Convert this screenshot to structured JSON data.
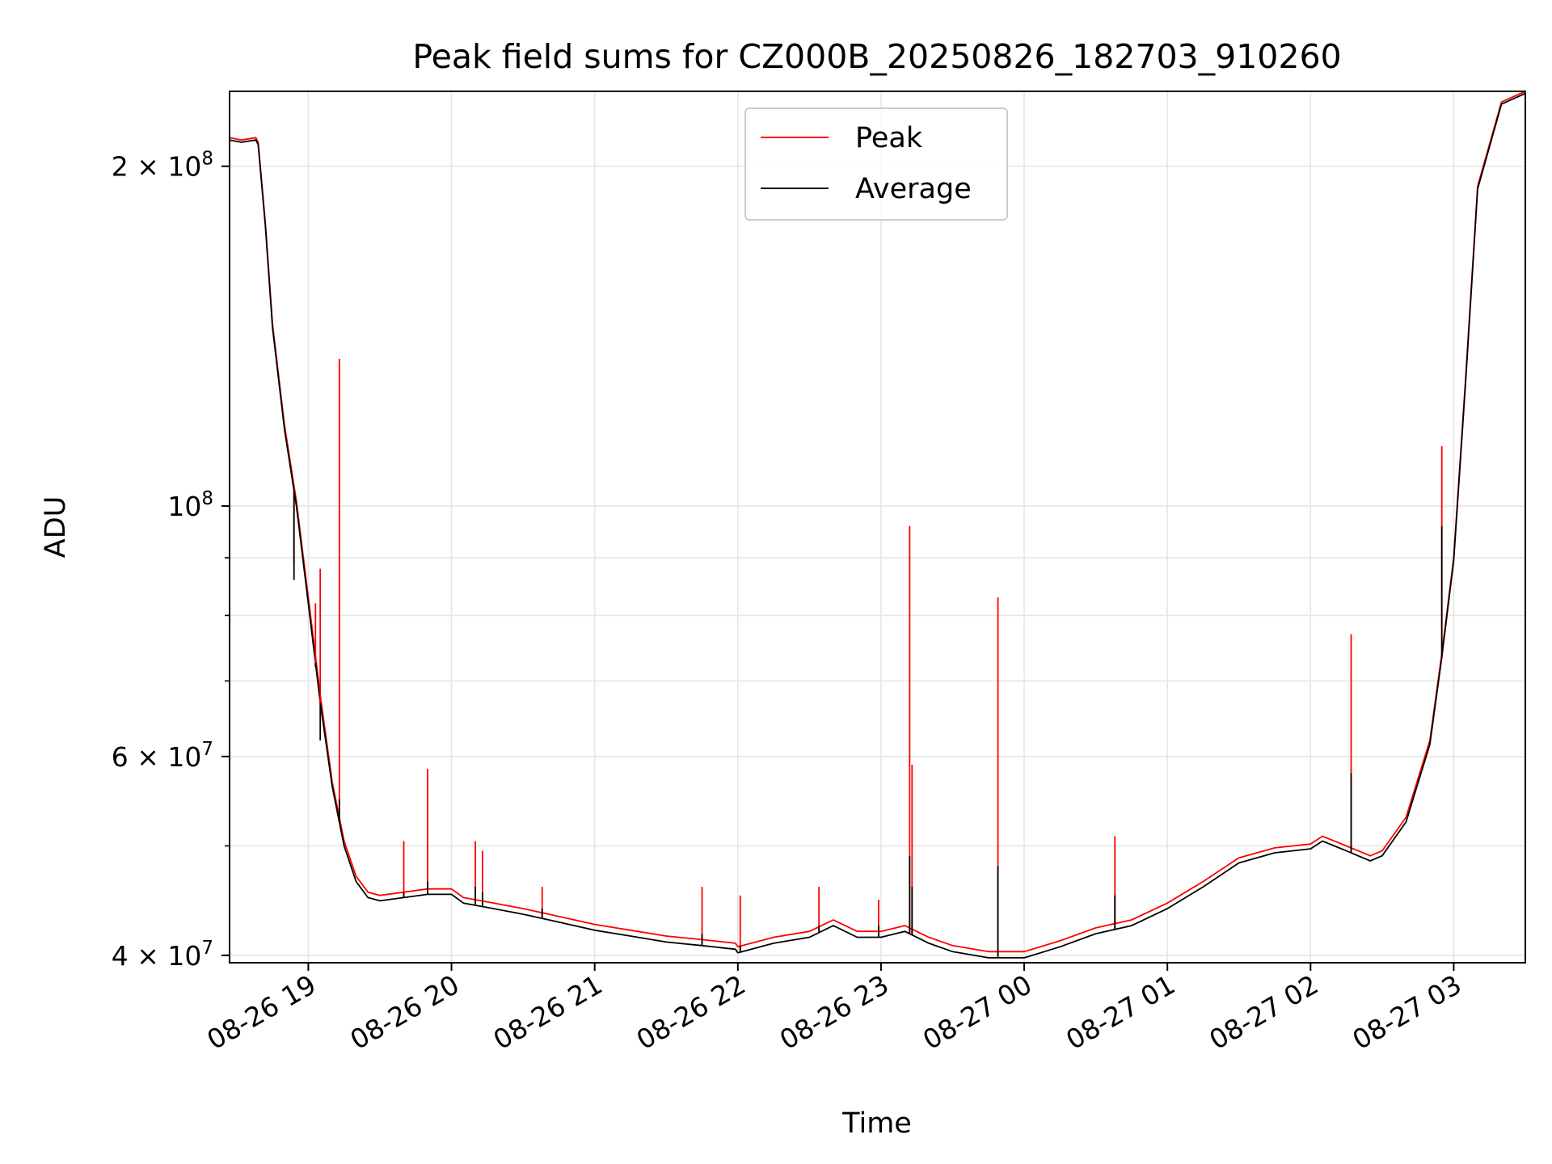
{
  "chart_data": {
    "type": "line",
    "title": "Peak field sums for CZ000B_20250826_182703_910260",
    "xlabel": "Time",
    "ylabel": "ADU",
    "y_scale": "log",
    "grid": true,
    "legend_position": "top-center",
    "xlim": [
      "2025-08-26 18:27",
      "2025-08-27 03:30"
    ],
    "ylim": [
      39400000,
      233000000
    ],
    "x_ticks": [
      {
        "t": "2025-08-26 19:00",
        "label": "08-26 19"
      },
      {
        "t": "2025-08-26 20:00",
        "label": "08-26 20"
      },
      {
        "t": "2025-08-26 21:00",
        "label": "08-26 21"
      },
      {
        "t": "2025-08-26 22:00",
        "label": "08-26 22"
      },
      {
        "t": "2025-08-26 23:00",
        "label": "08-26 23"
      },
      {
        "t": "2025-08-27 00:00",
        "label": "08-27 00"
      },
      {
        "t": "2025-08-27 01:00",
        "label": "08-27 01"
      },
      {
        "t": "2025-08-27 02:00",
        "label": "08-27 02"
      },
      {
        "t": "2025-08-27 03:00",
        "label": "08-27 03"
      }
    ],
    "y_major_ticks": [
      {
        "value": 40000000,
        "base": "4 × 10",
        "exp": "7"
      },
      {
        "value": 60000000,
        "base": "6 × 10",
        "exp": "7"
      },
      {
        "value": 100000000,
        "base": "10",
        "exp": "8"
      },
      {
        "value": 200000000,
        "base": "2 × 10",
        "exp": "8"
      }
    ],
    "y_minor_ticks": [
      50000000,
      70000000,
      80000000,
      90000000
    ],
    "series": [
      {
        "name": "Peak",
        "color": "#ff0000",
        "x": [
          "2025-08-26 18:27",
          "2025-08-26 18:32",
          "2025-08-26 18:38",
          "2025-08-26 18:39",
          "2025-08-26 18:42",
          "2025-08-26 18:45",
          "2025-08-26 18:50",
          "2025-08-26 18:55",
          "2025-08-26 19:00",
          "2025-08-26 19:05",
          "2025-08-26 19:10",
          "2025-08-26 19:15",
          "2025-08-26 19:20",
          "2025-08-26 19:25",
          "2025-08-26 19:30",
          "2025-08-26 19:40",
          "2025-08-26 19:50",
          "2025-08-26 20:00",
          "2025-08-26 20:05",
          "2025-08-26 20:15",
          "2025-08-26 20:30",
          "2025-08-26 20:45",
          "2025-08-26 21:00",
          "2025-08-26 21:15",
          "2025-08-26 21:30",
          "2025-08-26 21:45",
          "2025-08-26 21:59",
          "2025-08-26 22:00",
          "2025-08-26 22:15",
          "2025-08-26 22:30",
          "2025-08-26 22:40",
          "2025-08-26 22:50",
          "2025-08-26 23:00",
          "2025-08-26 23:10",
          "2025-08-26 23:20",
          "2025-08-26 23:30",
          "2025-08-26 23:45",
          "2025-08-27 00:00",
          "2025-08-27 00:15",
          "2025-08-27 00:30",
          "2025-08-27 00:45",
          "2025-08-27 01:00",
          "2025-08-27 01:15",
          "2025-08-27 01:30",
          "2025-08-27 01:45",
          "2025-08-27 02:00",
          "2025-08-27 02:05",
          "2025-08-27 02:15",
          "2025-08-27 02:25",
          "2025-08-27 02:30",
          "2025-08-27 02:40",
          "2025-08-27 02:50",
          "2025-08-27 02:55",
          "2025-08-27 03:00",
          "2025-08-27 03:05",
          "2025-08-27 03:10",
          "2025-08-27 03:20",
          "2025-08-27 03:30"
        ],
        "values": [
          212000000,
          211000000,
          212000000,
          210000000,
          178000000,
          145000000,
          118000000,
          101000000,
          83000000,
          68000000,
          57000000,
          50500000,
          47000000,
          45500000,
          45200000,
          45500000,
          45800000,
          45800000,
          45000000,
          44600000,
          44000000,
          43300000,
          42600000,
          42100000,
          41600000,
          41300000,
          41000000,
          40700000,
          41500000,
          42000000,
          43000000,
          42000000,
          42000000,
          42500000,
          41500000,
          40800000,
          40300000,
          40300000,
          41200000,
          42300000,
          43000000,
          44500000,
          46500000,
          48800000,
          49800000,
          50200000,
          51000000,
          50000000,
          49000000,
          49500000,
          53000000,
          62000000,
          74000000,
          90000000,
          130000000,
          192000000,
          228000000,
          233000000
        ]
      },
      {
        "name": "Average",
        "color": "#000000",
        "x": [
          "2025-08-26 18:27",
          "2025-08-26 18:32",
          "2025-08-26 18:38",
          "2025-08-26 18:39",
          "2025-08-26 18:42",
          "2025-08-26 18:45",
          "2025-08-26 18:50",
          "2025-08-26 18:55",
          "2025-08-26 19:00",
          "2025-08-26 19:05",
          "2025-08-26 19:10",
          "2025-08-26 19:15",
          "2025-08-26 19:20",
          "2025-08-26 19:25",
          "2025-08-26 19:30",
          "2025-08-26 19:40",
          "2025-08-26 19:50",
          "2025-08-26 20:00",
          "2025-08-26 20:05",
          "2025-08-26 20:15",
          "2025-08-26 20:30",
          "2025-08-26 20:45",
          "2025-08-26 21:00",
          "2025-08-26 21:15",
          "2025-08-26 21:30",
          "2025-08-26 21:45",
          "2025-08-26 21:59",
          "2025-08-26 22:00",
          "2025-08-26 22:15",
          "2025-08-26 22:30",
          "2025-08-26 22:40",
          "2025-08-26 22:50",
          "2025-08-26 23:00",
          "2025-08-26 23:10",
          "2025-08-26 23:20",
          "2025-08-26 23:30",
          "2025-08-26 23:45",
          "2025-08-27 00:00",
          "2025-08-27 00:15",
          "2025-08-27 00:30",
          "2025-08-27 00:45",
          "2025-08-27 01:00",
          "2025-08-27 01:15",
          "2025-08-27 01:30",
          "2025-08-27 01:45",
          "2025-08-27 02:00",
          "2025-08-27 02:05",
          "2025-08-27 02:15",
          "2025-08-27 02:25",
          "2025-08-27 02:30",
          "2025-08-27 02:40",
          "2025-08-27 02:50",
          "2025-08-27 02:55",
          "2025-08-27 03:00",
          "2025-08-27 03:05",
          "2025-08-27 03:10",
          "2025-08-27 03:20",
          "2025-08-27 03:30"
        ],
        "values": [
          211000000,
          210000000,
          211000000,
          209000000,
          177000000,
          144000000,
          117000000,
          100000000,
          82000000,
          67000000,
          56500000,
          50000000,
          46500000,
          45000000,
          44700000,
          45000000,
          45300000,
          45300000,
          44500000,
          44100000,
          43500000,
          42800000,
          42100000,
          41600000,
          41100000,
          40800000,
          40500000,
          40200000,
          41000000,
          41500000,
          42500000,
          41500000,
          41500000,
          42000000,
          41000000,
          40300000,
          39800000,
          39800000,
          40700000,
          41800000,
          42500000,
          44000000,
          46000000,
          48300000,
          49300000,
          49700000,
          50500000,
          49500000,
          48500000,
          49000000,
          52500000,
          61500000,
          73500000,
          89500000,
          129000000,
          191000000,
          227000000,
          232000000
        ]
      }
    ],
    "spikes": [
      {
        "t": "2025-08-26 18:54",
        "peak": 89000000,
        "average": 86000000
      },
      {
        "t": "2025-08-26 19:03",
        "peak": 82000000,
        "average": 72000000
      },
      {
        "t": "2025-08-26 19:05",
        "peak": 88000000,
        "average": 62000000
      },
      {
        "t": "2025-08-26 19:13",
        "peak": 135000000,
        "average": 55000000
      },
      {
        "t": "2025-08-26 19:40",
        "peak": 50500000,
        "average": 45500000
      },
      {
        "t": "2025-08-26 19:50",
        "peak": 58500000,
        "average": 46500000
      },
      {
        "t": "2025-08-26 20:10",
        "peak": 50500000,
        "average": 46000000
      },
      {
        "t": "2025-08-26 20:13",
        "peak": 49500000,
        "average": 45500000
      },
      {
        "t": "2025-08-26 20:38",
        "peak": 46000000,
        "average": 44000000
      },
      {
        "t": "2025-08-26 21:45",
        "peak": 46000000,
        "average": 41800000
      },
      {
        "t": "2025-08-26 22:01",
        "peak": 45200000,
        "average": 40800000
      },
      {
        "t": "2025-08-26 22:34",
        "peak": 46000000,
        "average": 42500000
      },
      {
        "t": "2025-08-26 22:59",
        "peak": 44800000,
        "average": 42500000
      },
      {
        "t": "2025-08-26 23:12",
        "peak": 96000000,
        "average": 49000000
      },
      {
        "t": "2025-08-26 23:13",
        "peak": 59000000,
        "average": 46000000
      },
      {
        "t": "2025-08-26 23:49",
        "peak": 83000000,
        "average": 48000000
      },
      {
        "t": "2025-08-27 00:38",
        "peak": 51000000,
        "average": 45200000
      },
      {
        "t": "2025-08-27 02:17",
        "peak": 77000000,
        "average": 58000000
      },
      {
        "t": "2025-08-27 02:55",
        "peak": 113000000,
        "average": 96000000
      }
    ]
  }
}
